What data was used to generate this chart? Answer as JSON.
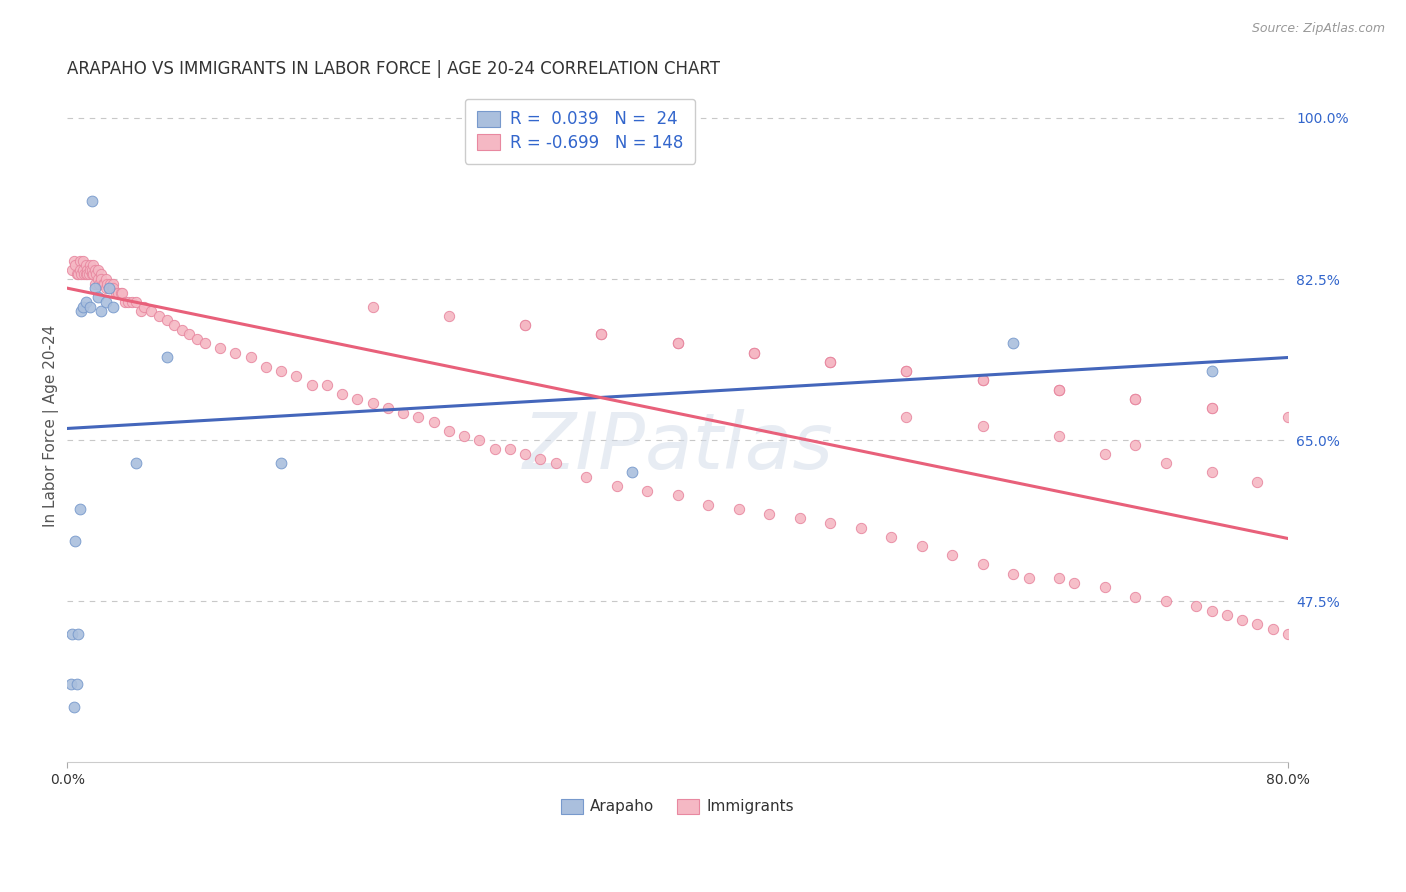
{
  "title": "ARAPAHO VS IMMIGRANTS IN LABOR FORCE | AGE 20-24 CORRELATION CHART",
  "source_text": "Source: ZipAtlas.com",
  "ylabel": "In Labor Force | Age 20-24",
  "x_min": 0.0,
  "x_max": 0.8,
  "y_min": 0.3,
  "y_max": 1.03,
  "y_ticks_right": [
    1.0,
    0.825,
    0.65,
    0.475
  ],
  "y_tick_labels_right": [
    "100.0%",
    "82.5%",
    "65.0%",
    "47.5%"
  ],
  "background_color": "#ffffff",
  "grid_color": "#c8c8c8",
  "blue_scatter_color": "#aabfdd",
  "blue_edge_color": "#7799cc",
  "blue_line_color": "#4466bb",
  "pink_scatter_color": "#f5b8c4",
  "pink_edge_color": "#e888a0",
  "pink_line_color": "#e8607a",
  "legend_R_blue": "0.039",
  "legend_N_blue": "24",
  "legend_R_pink": "-0.699",
  "legend_N_pink": "148",
  "watermark": "ZIPatlas",
  "arapaho_x": [
    0.002,
    0.003,
    0.004,
    0.005,
    0.006,
    0.007,
    0.008,
    0.009,
    0.01,
    0.012,
    0.015,
    0.016,
    0.018,
    0.02,
    0.022,
    0.025,
    0.027,
    0.03,
    0.045,
    0.065,
    0.37,
    0.62,
    0.75,
    0.14
  ],
  "arapaho_y": [
    0.385,
    0.44,
    0.36,
    0.54,
    0.385,
    0.44,
    0.575,
    0.79,
    0.795,
    0.8,
    0.795,
    0.91,
    0.815,
    0.805,
    0.79,
    0.8,
    0.815,
    0.795,
    0.625,
    0.74,
    0.615,
    0.755,
    0.725,
    0.625
  ],
  "immigrants_x": [
    0.003,
    0.004,
    0.005,
    0.006,
    0.007,
    0.008,
    0.008,
    0.009,
    0.01,
    0.01,
    0.011,
    0.012,
    0.012,
    0.013,
    0.013,
    0.014,
    0.015,
    0.015,
    0.016,
    0.016,
    0.017,
    0.017,
    0.018,
    0.018,
    0.019,
    0.02,
    0.02,
    0.021,
    0.022,
    0.022,
    0.023,
    0.024,
    0.025,
    0.025,
    0.026,
    0.027,
    0.028,
    0.029,
    0.03,
    0.03,
    0.032,
    0.033,
    0.035,
    0.036,
    0.038,
    0.04,
    0.042,
    0.045,
    0.048,
    0.05,
    0.055,
    0.06,
    0.065,
    0.07,
    0.075,
    0.08,
    0.085,
    0.09,
    0.1,
    0.11,
    0.12,
    0.13,
    0.14,
    0.15,
    0.16,
    0.17,
    0.18,
    0.19,
    0.2,
    0.21,
    0.22,
    0.23,
    0.24,
    0.25,
    0.26,
    0.27,
    0.28,
    0.29,
    0.3,
    0.31,
    0.32,
    0.34,
    0.36,
    0.38,
    0.4,
    0.42,
    0.44,
    0.46,
    0.48,
    0.5,
    0.52,
    0.54,
    0.56,
    0.58,
    0.6,
    0.62,
    0.63,
    0.65,
    0.66,
    0.68,
    0.7,
    0.72,
    0.74,
    0.75,
    0.76,
    0.77,
    0.78,
    0.79,
    0.8,
    0.35,
    0.4,
    0.45,
    0.5,
    0.55,
    0.6,
    0.65,
    0.7,
    0.75,
    0.8,
    0.3,
    0.35,
    0.4,
    0.45,
    0.5,
    0.55,
    0.6,
    0.65,
    0.7,
    0.75,
    0.25,
    0.3,
    0.35,
    0.4,
    0.45,
    0.5,
    0.55,
    0.6,
    0.65,
    0.7,
    0.2,
    0.55,
    0.6,
    0.65,
    0.7,
    0.68,
    0.72,
    0.75,
    0.78
  ],
  "immigrants_y": [
    0.835,
    0.845,
    0.84,
    0.83,
    0.83,
    0.845,
    0.835,
    0.83,
    0.845,
    0.835,
    0.83,
    0.84,
    0.83,
    0.835,
    0.83,
    0.83,
    0.84,
    0.835,
    0.83,
    0.835,
    0.83,
    0.84,
    0.835,
    0.82,
    0.83,
    0.835,
    0.825,
    0.82,
    0.83,
    0.825,
    0.82,
    0.82,
    0.825,
    0.815,
    0.82,
    0.815,
    0.82,
    0.815,
    0.82,
    0.815,
    0.81,
    0.81,
    0.81,
    0.81,
    0.8,
    0.8,
    0.8,
    0.8,
    0.79,
    0.795,
    0.79,
    0.785,
    0.78,
    0.775,
    0.77,
    0.765,
    0.76,
    0.755,
    0.75,
    0.745,
    0.74,
    0.73,
    0.725,
    0.72,
    0.71,
    0.71,
    0.7,
    0.695,
    0.69,
    0.685,
    0.68,
    0.675,
    0.67,
    0.66,
    0.655,
    0.65,
    0.64,
    0.64,
    0.635,
    0.63,
    0.625,
    0.61,
    0.6,
    0.595,
    0.59,
    0.58,
    0.575,
    0.57,
    0.565,
    0.56,
    0.555,
    0.545,
    0.535,
    0.525,
    0.515,
    0.505,
    0.5,
    0.5,
    0.495,
    0.49,
    0.48,
    0.475,
    0.47,
    0.465,
    0.46,
    0.455,
    0.45,
    0.445,
    0.44,
    0.765,
    0.755,
    0.745,
    0.735,
    0.725,
    0.715,
    0.705,
    0.695,
    0.685,
    0.675,
    0.775,
    0.765,
    0.755,
    0.745,
    0.735,
    0.725,
    0.715,
    0.705,
    0.695,
    0.685,
    0.785,
    0.775,
    0.765,
    0.755,
    0.745,
    0.735,
    0.725,
    0.715,
    0.705,
    0.695,
    0.795,
    0.675,
    0.665,
    0.655,
    0.645,
    0.635,
    0.625,
    0.615,
    0.605
  ]
}
